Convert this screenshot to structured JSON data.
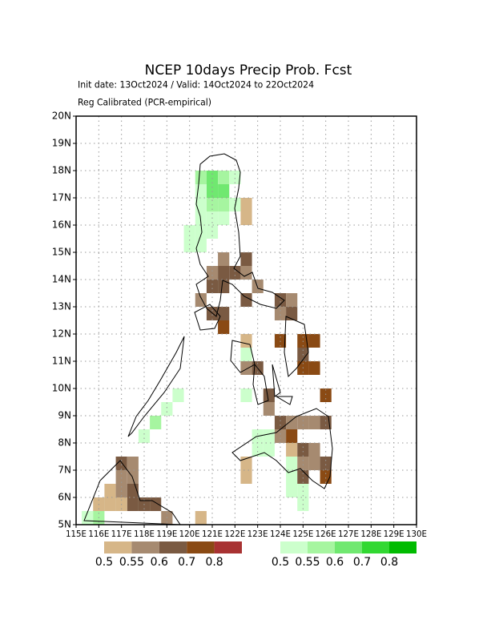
{
  "chart_data": {
    "type": "map",
    "title": "NCEP 10days Precip Prob. Fcst",
    "subtitle": "Init date: 13Oct2024 / Valid: 14Oct2024 to 22Oct2024",
    "method": "Reg Calibrated (PCR-empirical)",
    "xlim": [
      115,
      130
    ],
    "ylim": [
      5,
      20
    ],
    "xticks": [
      {
        "value": 115,
        "label": "115E"
      },
      {
        "value": 116,
        "label": "116E"
      },
      {
        "value": 117,
        "label": "117E"
      },
      {
        "value": 118,
        "label": "118E"
      },
      {
        "value": 119,
        "label": "119E"
      },
      {
        "value": 120,
        "label": "120E"
      },
      {
        "value": 121,
        "label": "121E"
      },
      {
        "value": 122,
        "label": "122E"
      },
      {
        "value": 123,
        "label": "123E"
      },
      {
        "value": 124,
        "label": "124E"
      },
      {
        "value": 125,
        "label": "125E"
      },
      {
        "value": 126,
        "label": "126E"
      },
      {
        "value": 127,
        "label": "127E"
      },
      {
        "value": 128,
        "label": "128E"
      },
      {
        "value": 129,
        "label": "129E"
      },
      {
        "value": 130,
        "label": "130E"
      }
    ],
    "yticks": [
      {
        "value": 5,
        "label": "5N"
      },
      {
        "value": 6,
        "label": "6N"
      },
      {
        "value": 7,
        "label": "7N"
      },
      {
        "value": 8,
        "label": "8N"
      },
      {
        "value": 9,
        "label": "9N"
      },
      {
        "value": 10,
        "label": "10N"
      },
      {
        "value": 11,
        "label": "11N"
      },
      {
        "value": 12,
        "label": "12N"
      },
      {
        "value": 13,
        "label": "13N"
      },
      {
        "value": 14,
        "label": "14N"
      },
      {
        "value": 15,
        "label": "15N"
      },
      {
        "value": 16,
        "label": "16N"
      },
      {
        "value": 17,
        "label": "17N"
      },
      {
        "value": 18,
        "label": "18N"
      },
      {
        "value": 19,
        "label": "19N"
      },
      {
        "value": 20,
        "label": "20N"
      }
    ],
    "grid": true,
    "dry_scale": {
      "levels": [
        0.5,
        0.55,
        0.6,
        0.7,
        0.8
      ],
      "colors": [
        "#d6b688",
        "#a68a70",
        "#7a5a42",
        "#8a4a14",
        "#a83232"
      ]
    },
    "wet_scale": {
      "levels": [
        0.5,
        0.55,
        0.6,
        0.7,
        0.8
      ],
      "colors": [
        "#ccffcc",
        "#a6f5a0",
        "#70e870",
        "#32d832",
        "#00bb00"
      ]
    },
    "wet_cells": [
      [
        120.25,
        17.5,
        0.57
      ],
      [
        120.75,
        17.5,
        0.62
      ],
      [
        121.25,
        17.5,
        0.57
      ],
      [
        121.75,
        17.5,
        0.52
      ],
      [
        120.75,
        17,
        0.62
      ],
      [
        121.25,
        17,
        0.62
      ],
      [
        120.25,
        17,
        0.52
      ],
      [
        120.75,
        16.5,
        0.57
      ],
      [
        121.25,
        16.5,
        0.57
      ],
      [
        120.25,
        16.5,
        0.52
      ],
      [
        121.75,
        16.5,
        0.52
      ],
      [
        120.25,
        16,
        0.52
      ],
      [
        120.75,
        16,
        0.52
      ],
      [
        121.25,
        16,
        0.52
      ],
      [
        119.75,
        15.5,
        0.52
      ],
      [
        120.25,
        15.5,
        0.52
      ],
      [
        120.75,
        15.5,
        0.52
      ],
      [
        119.75,
        15,
        0.52
      ],
      [
        120.25,
        15,
        0.52
      ],
      [
        119.25,
        9.5,
        0.52
      ],
      [
        118.75,
        9,
        0.52
      ],
      [
        118.25,
        8.5,
        0.57
      ],
      [
        117.75,
        8,
        0.52
      ],
      [
        115.25,
        5,
        0.52
      ],
      [
        115.75,
        5,
        0.57
      ],
      [
        122.75,
        7.5,
        0.52
      ],
      [
        123.25,
        7.5,
        0.52
      ],
      [
        123.25,
        8,
        0.52
      ],
      [
        124.25,
        6.5,
        0.52
      ],
      [
        124.25,
        6,
        0.52
      ],
      [
        124.75,
        6,
        0.52
      ],
      [
        124.25,
        7,
        0.52
      ],
      [
        124.75,
        5.5,
        0.52
      ],
      [
        122.75,
        8,
        0.52
      ],
      [
        122.25,
        9.5,
        0.52
      ],
      [
        122.25,
        11,
        0.52
      ]
    ],
    "dry_cells": [
      [
        122.25,
        16.5,
        0.52
      ],
      [
        122.25,
        16,
        0.52
      ],
      [
        121.25,
        14.5,
        0.57
      ],
      [
        121.25,
        14,
        0.65
      ],
      [
        120.75,
        14,
        0.57
      ],
      [
        121.75,
        14,
        0.65
      ],
      [
        120.75,
        13.5,
        0.65
      ],
      [
        121.25,
        13.5,
        0.65
      ],
      [
        120.25,
        13,
        0.57
      ],
      [
        122.25,
        14.5,
        0.65
      ],
      [
        122.25,
        14,
        0.57
      ],
      [
        122.25,
        13,
        0.65
      ],
      [
        120.75,
        12.5,
        0.65
      ],
      [
        121.25,
        12,
        0.75
      ],
      [
        121.25,
        12.5,
        0.65
      ],
      [
        122.75,
        13.5,
        0.57
      ],
      [
        123.75,
        13,
        0.65
      ],
      [
        124.25,
        13,
        0.57
      ],
      [
        123.75,
        12.5,
        0.57
      ],
      [
        124.25,
        12.5,
        0.65
      ],
      [
        123.75,
        11.5,
        0.75
      ],
      [
        124.75,
        11.5,
        0.75
      ],
      [
        125.25,
        11.5,
        0.75
      ],
      [
        124.75,
        11,
        0.65
      ],
      [
        124.75,
        10.5,
        0.75
      ],
      [
        125.25,
        10.5,
        0.75
      ],
      [
        125.75,
        9.5,
        0.75
      ],
      [
        122.25,
        11.5,
        0.52
      ],
      [
        122.25,
        10.5,
        0.57
      ],
      [
        122.75,
        10.5,
        0.65
      ],
      [
        123.25,
        9.5,
        0.65
      ],
      [
        123.25,
        9,
        0.57
      ],
      [
        123.75,
        8.5,
        0.65
      ],
      [
        124.25,
        8,
        0.75
      ],
      [
        124.75,
        8.5,
        0.57
      ],
      [
        125.25,
        8.5,
        0.57
      ],
      [
        125.75,
        8.5,
        0.65
      ],
      [
        124.25,
        7.5,
        0.52
      ],
      [
        124.75,
        7.5,
        0.65
      ],
      [
        125.25,
        7.5,
        0.57
      ],
      [
        124.75,
        7,
        0.57
      ],
      [
        125.25,
        7,
        0.57
      ],
      [
        124.75,
        6.5,
        0.65
      ],
      [
        125.75,
        6.5,
        0.75
      ],
      [
        125.75,
        7,
        0.65
      ],
      [
        122.25,
        7,
        0.52
      ],
      [
        122.25,
        6.5,
        0.52
      ],
      [
        123.75,
        8,
        0.57
      ],
      [
        124.25,
        8.5,
        0.57
      ],
      [
        116.75,
        6.5,
        0.57
      ],
      [
        116.75,
        7,
        0.65
      ],
      [
        117.25,
        6.5,
        0.57
      ],
      [
        117.25,
        7,
        0.57
      ],
      [
        116.25,
        6,
        0.52
      ],
      [
        116.75,
        6,
        0.57
      ],
      [
        117.25,
        6,
        0.65
      ],
      [
        117.75,
        5.5,
        0.65
      ],
      [
        118.25,
        5.5,
        0.65
      ],
      [
        117.25,
        5.5,
        0.65
      ],
      [
        116.25,
        5.5,
        0.52
      ],
      [
        115.75,
        5.5,
        0.52
      ],
      [
        116.75,
        5.5,
        0.52
      ],
      [
        118.75,
        5,
        0.57
      ],
      [
        120.25,
        5,
        0.52
      ]
    ]
  }
}
